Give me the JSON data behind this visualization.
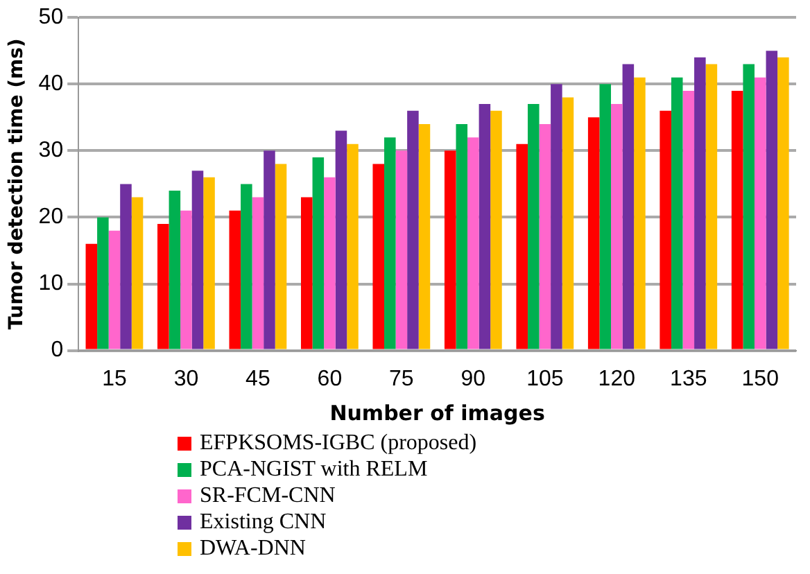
{
  "chart_data": {
    "type": "bar",
    "xlabel": "Number of images",
    "ylabel": "Tumor detection time (ms)",
    "categories": [
      "15",
      "30",
      "45",
      "60",
      "75",
      "90",
      "105",
      "120",
      "135",
      "150"
    ],
    "series": [
      {
        "name": "EFPKSOMS-IGBC (proposed)",
        "color": "#ff0000",
        "values": [
          16,
          19,
          21,
          23,
          28,
          30,
          31,
          35,
          36,
          39
        ]
      },
      {
        "name": "PCA-NGIST with RELM",
        "color": "#00b050",
        "values": [
          20,
          24,
          25,
          29,
          32,
          34,
          37,
          40,
          41,
          43
        ]
      },
      {
        "name": "SR-FCM-CNN",
        "color": "#ff66cc",
        "values": [
          18,
          21,
          23,
          26,
          30,
          32,
          34,
          37,
          39,
          41
        ]
      },
      {
        "name": "Existing CNN",
        "color": "#7030a0",
        "values": [
          25,
          27,
          30,
          33,
          36,
          37,
          40,
          43,
          44,
          45
        ]
      },
      {
        "name": "DWA-DNN",
        "color": "#ffc000",
        "values": [
          23,
          26,
          28,
          31,
          34,
          36,
          38,
          41,
          43,
          44
        ]
      }
    ],
    "ylim": [
      0,
      50
    ],
    "yticks": [
      0,
      10,
      20,
      30,
      40,
      50
    ],
    "grid": "y",
    "legend": "bottom"
  }
}
